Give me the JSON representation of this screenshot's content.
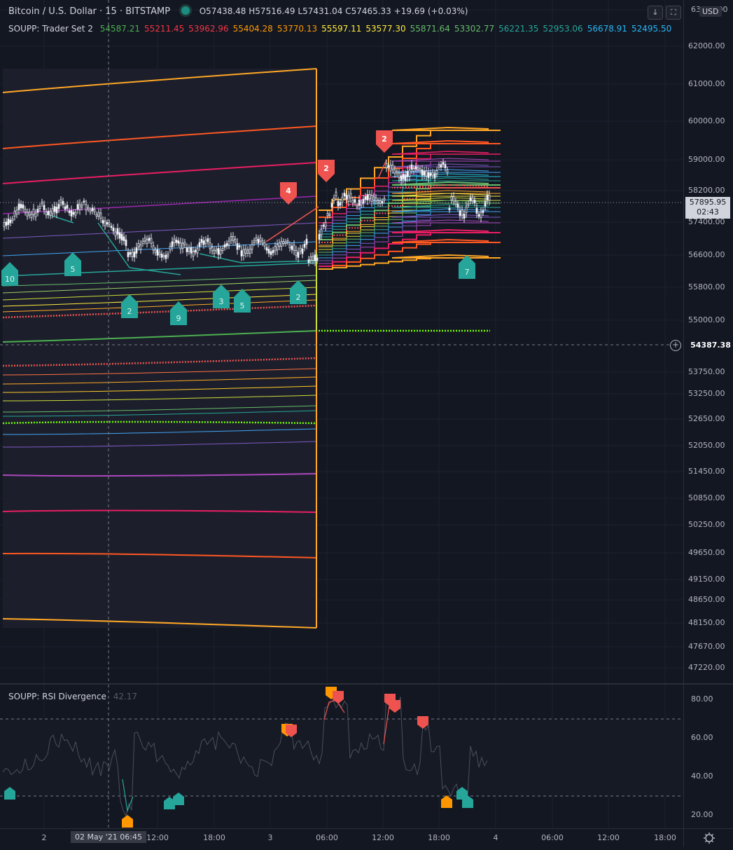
{
  "symbol": {
    "title": "Bitcoin / U.S. Dollar · 15 · BITSTAMP",
    "ohlc": [
      {
        "k": "O",
        "v": "57438.48"
      },
      {
        "k": "H",
        "v": "57516.49"
      },
      {
        "k": "L",
        "v": "57431.04"
      },
      {
        "k": "C",
        "v": "57465.33"
      }
    ],
    "change": "+19.69 (+0.03%)",
    "change_color": "#d1d4dc"
  },
  "indicator": {
    "name": "SOUPP: Trader Set 2",
    "values": [
      {
        "v": "54587.21",
        "color": "#4caf50"
      },
      {
        "v": "55211.45",
        "color": "#f23645"
      },
      {
        "v": "53962.96",
        "color": "#f23645"
      },
      {
        "v": "55404.28",
        "color": "#ff9800"
      },
      {
        "v": "53770.13",
        "color": "#ff9800"
      },
      {
        "v": "55597.11",
        "color": "#ffeb3b"
      },
      {
        "v": "53577.30",
        "color": "#ffeb3b"
      },
      {
        "v": "55871.64",
        "color": "#66bb6a"
      },
      {
        "v": "53302.77",
        "color": "#66bb6a"
      },
      {
        "v": "56221.35",
        "color": "#26a69a"
      },
      {
        "v": "52953.06",
        "color": "#26a69a"
      },
      {
        "v": "56678.91",
        "color": "#29b6f6"
      },
      {
        "v": "52495.50",
        "color": "#29b6f6"
      }
    ]
  },
  "rsi_indicator": {
    "name": "SOUPP: RSI Divergence",
    "value": "42.17"
  },
  "toolbar": {
    "down_arrow": "↓",
    "fullscreen": "⛶",
    "currency": "USD"
  },
  "price_axis": {
    "ticks": [
      "63000.00",
      "62000.00",
      "61000.00",
      "60000.00",
      "59000.00",
      "58200.00",
      "57400.00",
      "56600.00",
      "55800.00",
      "55000.00",
      "53750.00",
      "53250.00",
      "52650.00",
      "52050.00",
      "51450.00",
      "50850.00",
      "50250.00",
      "49650.00",
      "49150.00",
      "48650.00",
      "48150.00",
      "47670.00",
      "47220.00"
    ],
    "current_price": "57895.95",
    "countdown": "02:43",
    "crosshair_price": "54387.38"
  },
  "rsi_axis": {
    "ticks": [
      "80.00",
      "60.00",
      "40.00",
      "20.00"
    ]
  },
  "time_axis": {
    "ticks": [
      "2",
      "12:00",
      "18:00",
      "3",
      "06:00",
      "12:00",
      "18:00",
      "4",
      "06:00",
      "12:00",
      "18:00"
    ],
    "cursor_label": "02 May '21   06:45"
  },
  "markers": {
    "bull_labels": [
      "10",
      "5",
      "2",
      "9",
      "3",
      "5",
      "2",
      "7"
    ],
    "bear_labels": [
      "4",
      "2",
      "2"
    ]
  },
  "colors": {
    "bull": "#26a69a",
    "bear": "#ef5350",
    "orange": "#ff9800",
    "band_orange": "#ffa726",
    "crosshair": "#787b86",
    "green_bright": "#76ff03"
  }
}
